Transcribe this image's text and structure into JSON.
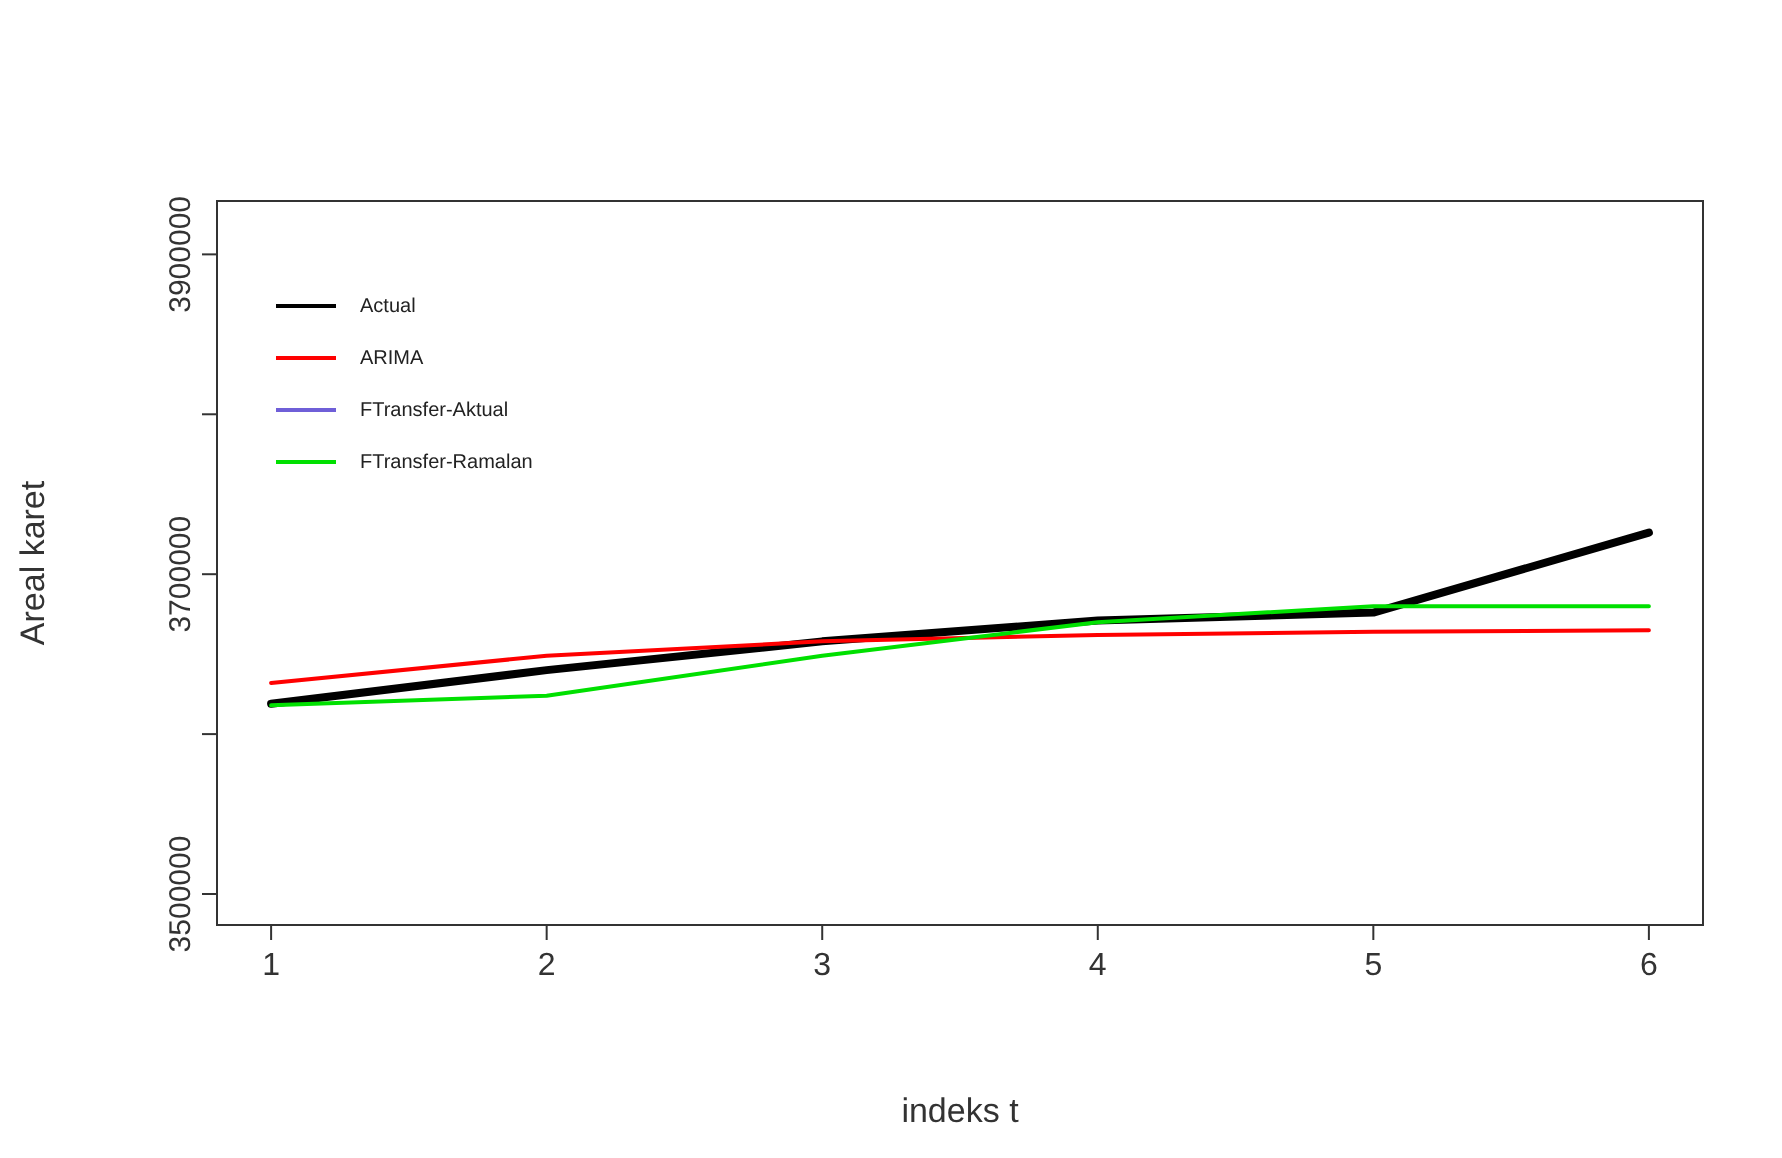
{
  "chart_data": {
    "type": "line",
    "xlabel": "indeks t",
    "ylabel": "Areal karet",
    "x": [
      1,
      2,
      3,
      4,
      5,
      6
    ],
    "xlim": [
      0.8,
      6.2
    ],
    "xticks": [
      1,
      2,
      3,
      4,
      5,
      6
    ],
    "ylim": [
      3480000,
      3934000
    ],
    "yticks": [
      3500000,
      {
        "value": 3600000,
        "label": null
      },
      3700000,
      {
        "value": 3800000,
        "label": null
      },
      3900000
    ],
    "series": [
      {
        "name": "Actual",
        "color": "#000000",
        "values": [
          3619000,
          3640000,
          3658000,
          3671000,
          3676000,
          3726000
        ]
      },
      {
        "name": "ARIMA",
        "color": "#ff0000",
        "values": [
          3632000,
          3649000,
          3658000,
          3662000,
          3664000,
          3665000
        ]
      },
      {
        "name": "FTransfer-Aktual",
        "color": "#6f5fd8",
        "values": [
          null,
          null,
          null,
          null,
          null,
          null
        ]
      },
      {
        "name": "FTransfer-Ramalan",
        "color": "#00e000",
        "values": [
          3618000,
          3624000,
          3649000,
          3670000,
          3680000,
          3680000
        ]
      }
    ],
    "legend": "top left",
    "marker": "none",
    "line_style": "solid"
  }
}
